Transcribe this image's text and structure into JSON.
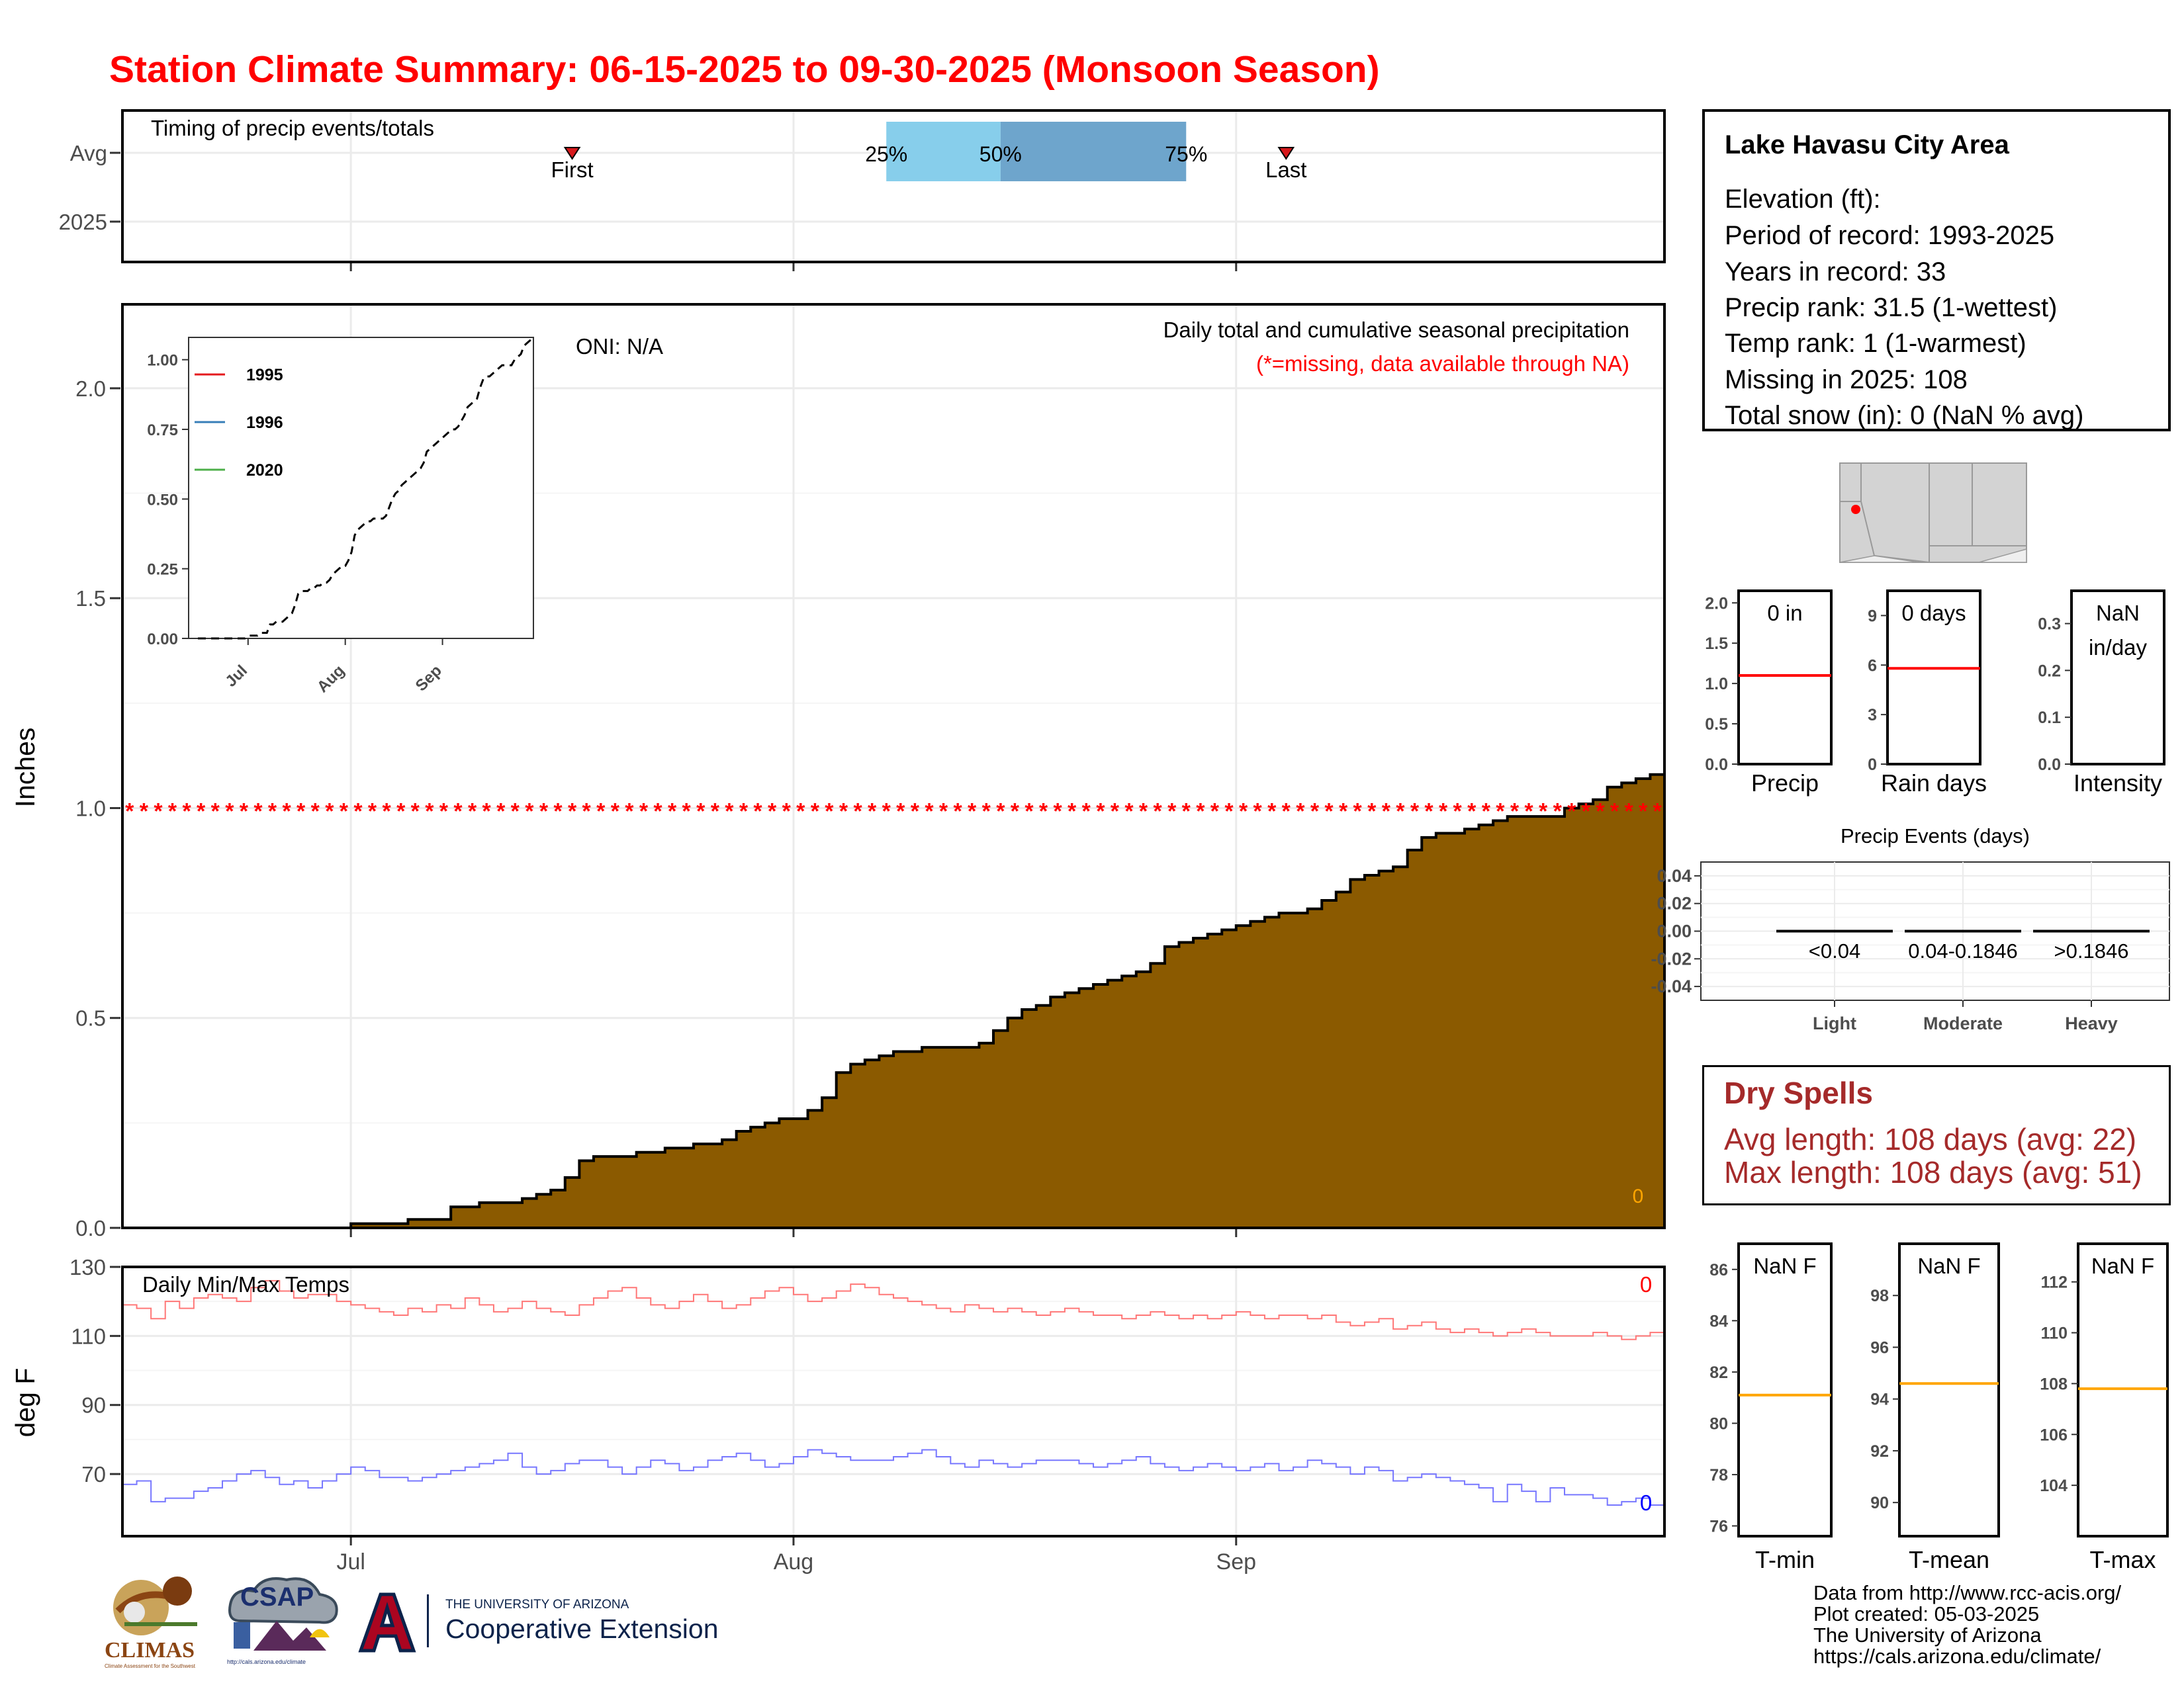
{
  "title": "Station Climate Summary: 06-15-2025 to 09-30-2025 (Monsoon Season)",
  "timing_panel": {
    "label": "Timing of precip events/totals",
    "rows": [
      "Avg",
      "2025"
    ],
    "first_label": "First",
    "last_label": "Last",
    "first_doy_offset": 31.5,
    "last_doy_offset": 81.5,
    "q25_label": "25%",
    "q50_label": "50%",
    "q75_label": "75%",
    "q25": 53.5,
    "q50": 61.5,
    "q75": 74.5
  },
  "precip_panel": {
    "annotation": "ONI: N/A",
    "subtitle": "Daily total and cumulative seasonal precipitation",
    "missing_note": "(*=missing, data available through NA)",
    "ylabel": "Inches",
    "zero_label": "0",
    "colors": {
      "fill": "#8b5a00",
      "missing": "#ff0000",
      "zero": "#ffa500"
    }
  },
  "inset": {
    "legend": [
      {
        "name": "1995",
        "color": "#e41a1c"
      },
      {
        "name": "1996",
        "color": "#377eb8"
      },
      {
        "name": "2020",
        "color": "#4daf4a"
      }
    ]
  },
  "temp_panel": {
    "label": "Daily Min/Max Temps",
    "ylabel": "deg F",
    "max_zero": "0",
    "min_zero": "0"
  },
  "x_axis": {
    "ticks": [
      "Jul",
      "Aug",
      "Sep"
    ]
  },
  "info_box": {
    "title": "Lake Havasu City Area",
    "lines": [
      "Elevation (ft):",
      "Period of record: 1993-2025",
      "Years in record: 33",
      "Precip rank: 31.5 (1-wettest)",
      "Temp rank: 1 (1-warmest)",
      "Missing in 2025: 108",
      "Total snow (in): 0 (NaN % avg)"
    ]
  },
  "mini_bars": [
    {
      "label": "Precip",
      "value_text": "0 in",
      "avg": 1.1,
      "ylim": [
        0,
        2.15
      ],
      "ticks": [
        0,
        0.5,
        1.0,
        1.5,
        2.0
      ],
      "tick_labels": [
        "0.0",
        "0.5",
        "1.0",
        "1.5",
        "2.0"
      ]
    },
    {
      "label": "Rain days",
      "value_text": "0 days",
      "avg": 5.8,
      "ylim": [
        0,
        10.5
      ],
      "ticks": [
        0,
        3,
        6,
        9
      ],
      "tick_labels": [
        "0",
        "3",
        "6",
        "9"
      ]
    },
    {
      "label": "Intensity",
      "value_text": "NaN in/day",
      "value_lines": [
        "NaN",
        "in/day"
      ],
      "avg": null,
      "ylim": [
        0,
        0.37
      ],
      "ticks": [
        0,
        0.1,
        0.2,
        0.3
      ],
      "tick_labels": [
        "0.0",
        "0.1",
        "0.2",
        "0.3"
      ]
    }
  ],
  "precip_events": {
    "title": "Precip Events (days)",
    "categories": [
      "Light",
      "Moderate",
      "Heavy"
    ],
    "ranges": [
      "<0.04",
      "0.04-0.1846",
      ">0.1846"
    ],
    "values": [
      0,
      0,
      0
    ],
    "ytick_labels": [
      "0.04",
      "0.02",
      "0.00",
      "-0.02",
      "-0.04"
    ]
  },
  "dry_spells": {
    "title": "Dry Spells",
    "lines": [
      "Avg length: 108 days (avg: 22)",
      "Max length: 108 days (avg: 51)"
    ]
  },
  "temp_bars": [
    {
      "label": "T-min",
      "value_text": "NaN F",
      "avg": 81.1,
      "ylim": [
        75.6,
        87.0
      ],
      "ticks": [
        76,
        78,
        80,
        82,
        84,
        86
      ],
      "tick_labels": [
        "76",
        "78",
        "80",
        "82",
        "84",
        "86"
      ]
    },
    {
      "label": "T-mean",
      "value_text": "NaN F",
      "avg": 94.6,
      "ylim": [
        88.7,
        100.0
      ],
      "ticks": [
        90,
        92,
        94,
        96,
        98
      ],
      "tick_labels": [
        "90",
        "92",
        "94",
        "96",
        "98"
      ]
    },
    {
      "label": "T-max",
      "value_text": "NaN F",
      "avg": 107.8,
      "ylim": [
        102.0,
        113.5
      ],
      "ticks": [
        104,
        106,
        108,
        110,
        112
      ],
      "tick_labels": [
        "104",
        "106",
        "108",
        "110",
        "112"
      ]
    }
  ],
  "footer": [
    "Data from http://www.rcc-acis.org/",
    "Plot created: 05-03-2025",
    "The University of Arizona",
    "https://cals.arizona.edu/climate/"
  ],
  "logos": {
    "climas": "CLIMAS",
    "climas_sub": "Climate Assessment for the Southwest",
    "csap": "CSAP",
    "csap_url": "http://cals.arizona.edu/climate",
    "ua_small": "THE UNIVERSITY OF ARIZONA",
    "ua_big": "Cooperative Extension"
  },
  "chart_data": [
    {
      "type": "area",
      "name": "cumulative_precip",
      "x_range": [
        "06-15",
        "09-30"
      ],
      "ylim": [
        0,
        2.2
      ],
      "yticks": [
        0.0,
        0.5,
        1.0,
        1.5,
        2.0
      ],
      "ytick_labels": [
        "0.0",
        "0.5",
        "1.0",
        "1.5",
        "2.0"
      ],
      "average_cumulative": [
        0,
        0,
        0,
        0,
        0,
        0,
        0,
        0,
        0,
        0,
        0,
        0,
        0,
        0,
        0,
        0,
        0.01,
        0.01,
        0.01,
        0.01,
        0.02,
        0.02,
        0.02,
        0.05,
        0.05,
        0.06,
        0.06,
        0.06,
        0.07,
        0.08,
        0.09,
        0.12,
        0.16,
        0.17,
        0.17,
        0.17,
        0.18,
        0.18,
        0.19,
        0.19,
        0.2,
        0.2,
        0.21,
        0.23,
        0.24,
        0.25,
        0.26,
        0.26,
        0.28,
        0.31,
        0.37,
        0.39,
        0.4,
        0.41,
        0.42,
        0.42,
        0.43,
        0.43,
        0.43,
        0.43,
        0.44,
        0.47,
        0.5,
        0.52,
        0.53,
        0.55,
        0.56,
        0.57,
        0.58,
        0.59,
        0.6,
        0.61,
        0.63,
        0.67,
        0.68,
        0.69,
        0.7,
        0.71,
        0.72,
        0.73,
        0.74,
        0.75,
        0.75,
        0.76,
        0.78,
        0.8,
        0.83,
        0.84,
        0.85,
        0.86,
        0.9,
        0.93,
        0.94,
        0.94,
        0.95,
        0.96,
        0.97,
        0.98,
        0.98,
        0.98,
        0.98,
        1.0,
        1.01,
        1.02,
        1.05,
        1.06,
        1.07,
        1.08
      ]
    },
    {
      "type": "line",
      "name": "inset_cumulative",
      "ylim": [
        0,
        1.08
      ],
      "yticks": [
        0.0,
        0.25,
        0.5,
        0.75,
        1.0
      ],
      "ytick_labels": [
        "0.00",
        "0.25",
        "0.50",
        "0.75",
        "1.00"
      ],
      "xticks": [
        "Jul",
        "Aug",
        "Sep"
      ]
    },
    {
      "type": "line",
      "name": "daily_temps",
      "ylim": [
        52,
        130
      ],
      "yticks": [
        70,
        90,
        110,
        130
      ],
      "ytick_labels": [
        "70",
        "90",
        "110",
        "130"
      ],
      "tmax": [
        119,
        118,
        115,
        120,
        118,
        121,
        122,
        121,
        120,
        124,
        126,
        123,
        121,
        122,
        122,
        120,
        119,
        118,
        117,
        116,
        118,
        117,
        119,
        118,
        121,
        119,
        117,
        118,
        120,
        118,
        117,
        116,
        119,
        121,
        123,
        124,
        121,
        119,
        118,
        120,
        122,
        120,
        118,
        119,
        121,
        123,
        124,
        122,
        120,
        121,
        123,
        125,
        124,
        122,
        121,
        120,
        119,
        118,
        117,
        119,
        118,
        117,
        118,
        117,
        116,
        117,
        118,
        117,
        116,
        116,
        115,
        116,
        117,
        116,
        115,
        116,
        115,
        116,
        117,
        116,
        115,
        116,
        116,
        115,
        116,
        114,
        113,
        114,
        115,
        112,
        113,
        114,
        112,
        111,
        112,
        111,
        110,
        111,
        112,
        111,
        110,
        110,
        110,
        111,
        110,
        109,
        110,
        111
      ],
      "tmin": [
        67,
        68,
        62,
        63,
        63,
        65,
        66,
        68,
        70,
        71,
        69,
        67,
        68,
        66,
        68,
        70,
        72,
        71,
        69,
        69,
        68,
        69,
        70,
        71,
        72,
        73,
        74,
        76,
        72,
        70,
        71,
        73,
        74,
        74,
        72,
        70,
        72,
        74,
        73,
        71,
        72,
        74,
        75,
        76,
        74,
        72,
        73,
        75,
        77,
        76,
        75,
        74,
        74,
        74,
        75,
        76,
        77,
        75,
        73,
        72,
        74,
        73,
        72,
        73,
        74,
        74,
        74,
        73,
        72,
        73,
        74,
        75,
        73,
        72,
        71,
        72,
        73,
        72,
        71,
        72,
        73,
        71,
        72,
        74,
        73,
        72,
        70,
        72,
        71,
        68,
        69,
        70,
        69,
        68,
        67,
        66,
        62,
        67,
        65,
        62,
        66,
        64,
        64,
        63,
        61,
        62,
        63,
        61
      ]
    }
  ]
}
